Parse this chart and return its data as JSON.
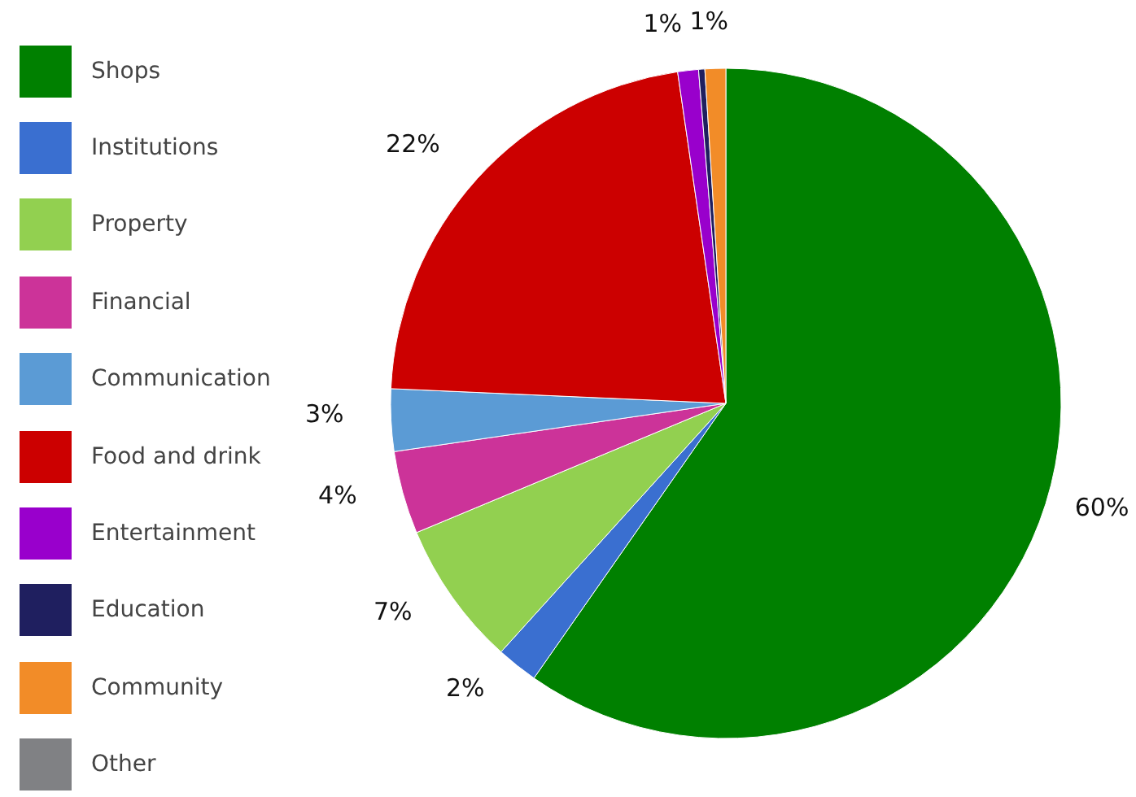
{
  "chart_data": {
    "type": "pie",
    "categories": [
      "Shops",
      "Institutions",
      "Property",
      "Financial",
      "Communication",
      "Food and drink",
      "Entertainment",
      "Education",
      "Community",
      "Other"
    ],
    "values": [
      59.7,
      2,
      7,
      4,
      3,
      22,
      1,
      0.3,
      1,
      0
    ],
    "value_labels": [
      "60%",
      "2%",
      "7%",
      "4%",
      "3%",
      "22%",
      "1%",
      null,
      "1%",
      null
    ],
    "colors": [
      "#008000",
      "#3a6fd0",
      "#92d050",
      "#cc3399",
      "#5b9bd5",
      "#cc0000",
      "#9900cc",
      "#1f1f5f",
      "#f28c28",
      "#808184"
    ],
    "legend": "left"
  }
}
